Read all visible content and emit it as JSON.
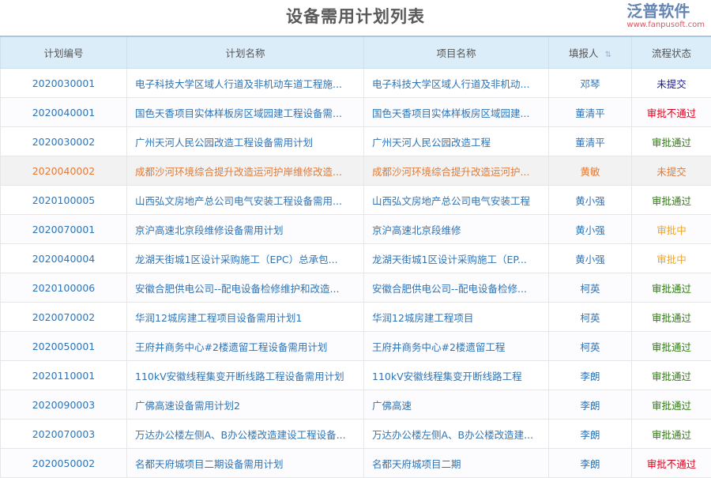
{
  "title": "设备需用计划列表",
  "columns": [
    "计划编号",
    "计划名称",
    "项目名称",
    "填报人",
    "流程状态"
  ],
  "sort_icon": "sort-icon",
  "rows": [
    {
      "id": "2020030001",
      "plan": "电子科技大学区域人行道及非机动车道工程施...",
      "project": "电子科技大学区域人行道及非机动...",
      "user": "邓琴",
      "status": "未提交"
    },
    {
      "id": "2020040001",
      "plan": "国色天香项目实体样板房区域园建工程设备需...",
      "project": "国色天香项目实体样板房区域园建...",
      "user": "董清平",
      "status": "审批不通过"
    },
    {
      "id": "2020030002",
      "plan": "广州天河人民公园改造工程设备需用计划",
      "project": "广州天河人民公园改造工程",
      "user": "董清平",
      "status": "审批通过"
    },
    {
      "id": "2020040002",
      "plan": "成都沙河环境综合提升改造运河护岸维修改造...",
      "project": "成都沙河环境综合提升改造运河护...",
      "user": "黄敏",
      "status": "未提交",
      "highlighted": true
    },
    {
      "id": "2020100005",
      "plan": "山西弘文房地产总公司电气安装工程设备需用...",
      "project": "山西弘文房地产总公司电气安装工程",
      "user": "黄小强",
      "status": "审批通过"
    },
    {
      "id": "2020070001",
      "plan": "京沪高速北京段维修设备需用计划",
      "project": "京沪高速北京段维修",
      "user": "黄小强",
      "status": "审批中"
    },
    {
      "id": "2020040004",
      "plan": "龙湖天街城1区设计采购施工（EPC）总承包...",
      "project": "龙湖天街城1区设计采购施工（EP...",
      "user": "黄小强",
      "status": "审批中"
    },
    {
      "id": "2020100006",
      "plan": "安徽合肥供电公司--配电设备检修维护和改造...",
      "project": "安徽合肥供电公司--配电设备检修...",
      "user": "柯英",
      "status": "审批通过"
    },
    {
      "id": "2020070002",
      "plan": "华润12城房建工程项目设备需用计划1",
      "project": "华润12城房建工程项目",
      "user": "柯英",
      "status": "审批通过"
    },
    {
      "id": "2020050001",
      "plan": "王府井商务中心#2楼遗留工程设备需用计划",
      "project": "王府井商务中心#2楼遗留工程",
      "user": "柯英",
      "status": "审批通过"
    },
    {
      "id": "2020110001",
      "plan": "110kV安徽线程集变开断线路工程设备需用计划",
      "project": "110kV安徽线程集变开断线路工程",
      "user": "李朗",
      "status": "审批通过"
    },
    {
      "id": "2020090003",
      "plan": "广佛高速设备需用计划2",
      "project": "广佛高速",
      "user": "李朗",
      "status": "审批通过"
    },
    {
      "id": "2020070003",
      "plan": "万达办公楼左侧A、B办公楼改造建设工程设备...",
      "project": "万达办公楼左侧A、B办公楼改造建...",
      "user": "李朗",
      "status": "审批通过"
    },
    {
      "id": "2020050002",
      "plan": "名都天府城项目二期设备需用计划",
      "project": "名都天府城项目二期",
      "user": "李朗",
      "status": "审批不通过"
    }
  ],
  "watermark": {
    "text": "泛普软件",
    "url": "www.fanpusoft.com"
  }
}
